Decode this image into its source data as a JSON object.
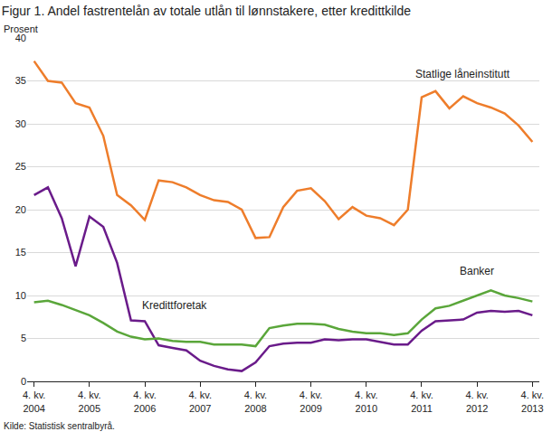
{
  "chart_data": {
    "type": "line",
    "title": "Figur 1. Andel fastrentelån av totale utlån til lønnstakere, etter kredittkilde",
    "y_label": "Prosent",
    "source": "Kilde: Statistisk sentralbyrå.",
    "categories": [
      "4. kv. 2004",
      null,
      null,
      null,
      "4. kv. 2005",
      null,
      null,
      null,
      "4. kv. 2006",
      null,
      null,
      null,
      "4. kv. 2007",
      null,
      null,
      null,
      "4. kv. 2008",
      null,
      null,
      null,
      "4. kv. 2009",
      null,
      null,
      null,
      "4. kv. 2010",
      null,
      null,
      null,
      "4. kv. 2011",
      null,
      null,
      null,
      "4. kv. 2012",
      null,
      null,
      null,
      "4. kv. 2013"
    ],
    "series": [
      {
        "name": "Statlige låneinstitutt",
        "color": "#ee7d2b",
        "values": [
          37.3,
          35.0,
          34.8,
          32.4,
          31.9,
          28.6,
          21.7,
          20.5,
          18.8,
          23.4,
          23.2,
          22.6,
          21.7,
          21.1,
          20.9,
          20.0,
          16.7,
          16.8,
          20.3,
          22.2,
          22.5,
          21.0,
          18.9,
          20.3,
          19.3,
          19.0,
          18.2,
          20.0,
          33.1,
          33.8,
          31.8,
          33.2,
          32.4,
          31.9,
          31.2,
          29.8,
          27.9
        ]
      },
      {
        "name": "Kredittforetak",
        "color": "#6a1b8a",
        "values": [
          21.7,
          22.6,
          19.0,
          13.4,
          19.2,
          18.0,
          13.8,
          7.1,
          7.0,
          4.2,
          3.9,
          3.6,
          2.4,
          1.8,
          1.4,
          1.2,
          2.2,
          4.1,
          4.4,
          4.5,
          4.5,
          4.9,
          4.8,
          4.9,
          4.9,
          4.6,
          4.3,
          4.3,
          5.9,
          7.0,
          7.1,
          7.2,
          8.0,
          8.2,
          8.1,
          8.2,
          7.7
        ]
      },
      {
        "name": "Banker",
        "color": "#5aa63a",
        "values": [
          9.2,
          9.4,
          8.9,
          8.3,
          7.7,
          6.8,
          5.8,
          5.2,
          4.9,
          5.0,
          4.7,
          4.6,
          4.6,
          4.3,
          4.3,
          4.3,
          4.1,
          6.2,
          6.5,
          6.7,
          6.7,
          6.6,
          6.1,
          5.8,
          5.6,
          5.6,
          5.4,
          5.6,
          7.2,
          8.5,
          8.8,
          9.4,
          10.0,
          10.6,
          10.0,
          9.7,
          9.3
        ]
      }
    ],
    "ylim": [
      0,
      40
    ],
    "yticks": [
      0,
      5,
      10,
      15,
      20,
      25,
      30,
      35,
      40
    ],
    "grid": true
  }
}
